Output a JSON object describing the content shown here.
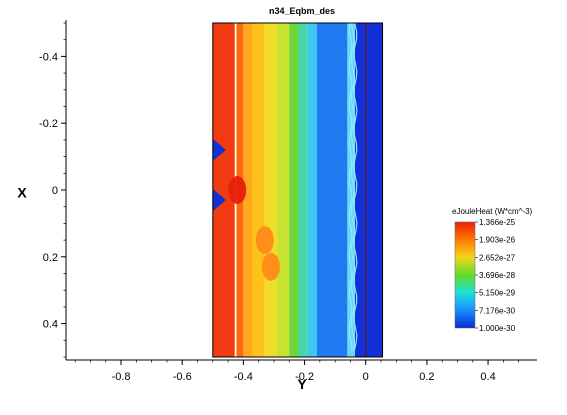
{
  "chart_data": {
    "type": "heatmap",
    "title": "n34_Eqbm_des",
    "xlabel": "Y",
    "ylabel": "X",
    "xlim": [
      -0.98,
      0.56
    ],
    "ylim": [
      -0.5,
      0.5
    ],
    "y_inverted": true,
    "x_ticks": [
      "-0.8",
      "-0.6",
      "-0.4",
      "-0.2",
      "0",
      "0.2",
      "0.4"
    ],
    "x_tick_values": [
      -0.8,
      -0.6,
      -0.4,
      -0.2,
      0,
      0.2,
      0.4
    ],
    "y_ticks": [
      "-0.4",
      "-0.2",
      "0",
      "0.2",
      "0.4"
    ],
    "y_tick_values": [
      -0.4,
      -0.2,
      0,
      0.2,
      0.4
    ],
    "domain_y_range": [
      -0.5,
      0.055
    ],
    "colorbar": {
      "title": "eJouleHeat (W*cm^-3)",
      "labels": [
        "1.366e-25",
        "1.903e-26",
        "2.652e-27",
        "3.696e-28",
        "5.150e-29",
        "7.176e-30",
        "1.000e-30"
      ],
      "colors": [
        "#e8200c",
        "#ff7a00",
        "#f5d41c",
        "#5fdc2a",
        "#1ee0d8",
        "#1a8cff",
        "#0a2ad0"
      ],
      "scale": "log"
    },
    "bands": [
      {
        "y_from": -0.5,
        "y_to": -0.43,
        "color": "#ef3a12"
      },
      {
        "y_from": -0.43,
        "y_to": -0.4,
        "color": "#ff6a10"
      },
      {
        "y_from": -0.4,
        "y_to": -0.37,
        "color": "#ffa81c"
      },
      {
        "y_from": -0.37,
        "y_to": -0.33,
        "color": "#ffc21a"
      },
      {
        "y_from": -0.33,
        "y_to": -0.29,
        "color": "#f2dc2a"
      },
      {
        "y_from": -0.29,
        "y_to": -0.25,
        "color": "#c8e232"
      },
      {
        "y_from": -0.25,
        "y_to": -0.22,
        "color": "#6fd63a"
      },
      {
        "y_from": -0.22,
        "y_to": -0.19,
        "color": "#46d6a8"
      },
      {
        "y_from": -0.19,
        "y_to": -0.16,
        "color": "#3ec6f0"
      },
      {
        "y_from": -0.16,
        "y_to": -0.06,
        "color": "#1f7af0"
      },
      {
        "y_from": -0.06,
        "y_to": -0.035,
        "color": "#6ad8f4"
      },
      {
        "y_from": -0.035,
        "y_to": 0.055,
        "color": "#1230d8"
      }
    ],
    "features": [
      {
        "kind": "blob",
        "y": -0.42,
        "x": 0.0,
        "color": "#e8200c"
      },
      {
        "kind": "blob",
        "y": -0.33,
        "x": 0.15,
        "color": "#ff8a18"
      },
      {
        "kind": "blob",
        "y": -0.31,
        "x": 0.23,
        "color": "#ff8a18"
      },
      {
        "kind": "notch",
        "y": -0.49,
        "x": -0.12,
        "color": "#1230d8"
      },
      {
        "kind": "notch",
        "y": -0.49,
        "x": 0.03,
        "color": "#1230d8"
      }
    ]
  }
}
